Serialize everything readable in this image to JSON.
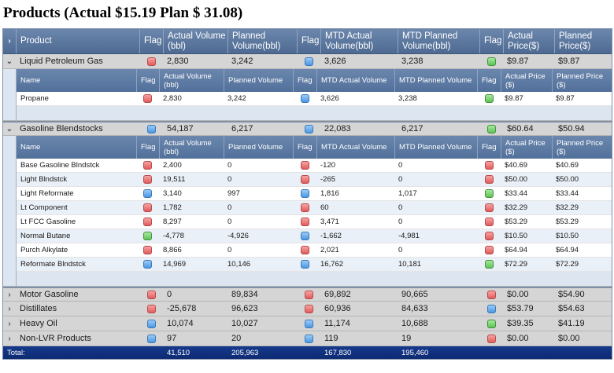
{
  "title": "Products (Actual $15.19 Plan $ 31.08)",
  "columns": {
    "product": "Product",
    "flag": "Flag",
    "actual_volume": "Actual Volume (bbl)",
    "planned_volume": "Planned Volume(bbl)",
    "mtd_actual": "MTD Actual Volume(bbl)",
    "mtd_planned": "MTD Planned Volume(bbl)",
    "actual_price": "Actual Price($)",
    "planned_price": "Planned Price($)"
  },
  "sub_columns": {
    "name": "Name",
    "flag": "Flag",
    "actual_volume": "Actual Volume (bbl)",
    "planned_volume": "Planned Volume",
    "mtd_actual": "MTD Actual Volume",
    "mtd_planned": "MTD Planned Volume",
    "actual_price": "Actual Price ($)",
    "planned_price": "Planned Price ($)"
  },
  "icons": {
    "collapsed": "chevron-right-icon",
    "expanded": "chevron-down-icon"
  },
  "groups": [
    {
      "name": "Liquid Petroleum Gas",
      "expanded": true,
      "flag1": "red",
      "actual_volume": "2,830",
      "planned_volume": "3,242",
      "flag2": "blue",
      "mtd_actual": "3,626",
      "mtd_planned": "3,238",
      "flag3": "green",
      "actual_price": "$9.87",
      "planned_price": "$9.87",
      "items": [
        {
          "name": "Propane",
          "flag1": "red",
          "actual_volume": "2,830",
          "planned_volume": "3,242",
          "flag2": "blue",
          "mtd_actual": "3,626",
          "mtd_planned": "3,238",
          "flag3": "green",
          "actual_price": "$9.87",
          "planned_price": "$9.87"
        }
      ]
    },
    {
      "name": "Gasoline Blendstocks",
      "expanded": true,
      "flag1": "blue",
      "actual_volume": "54,187",
      "planned_volume": "6,217",
      "flag2": "blue",
      "mtd_actual": "22,083",
      "mtd_planned": "6,217",
      "flag3": "green",
      "actual_price": "$60.64",
      "planned_price": "$50.94",
      "items": [
        {
          "name": "Base Gasoline Blndstck",
          "flag1": "red",
          "actual_volume": "2,400",
          "planned_volume": "0",
          "flag2": "red",
          "mtd_actual": "-120",
          "mtd_planned": "0",
          "flag3": "red",
          "actual_price": "$40.69",
          "planned_price": "$40.69"
        },
        {
          "name": "Light Blndstck",
          "flag1": "red",
          "actual_volume": "19,511",
          "planned_volume": "0",
          "flag2": "red",
          "mtd_actual": "-265",
          "mtd_planned": "0",
          "flag3": "red",
          "actual_price": "$50.00",
          "planned_price": "$50.00"
        },
        {
          "name": "Light Reformate",
          "flag1": "blue",
          "actual_volume": "3,140",
          "planned_volume": "997",
          "flag2": "blue",
          "mtd_actual": "1,816",
          "mtd_planned": "1,017",
          "flag3": "green",
          "actual_price": "$33.44",
          "planned_price": "$33.44"
        },
        {
          "name": "Lt Component",
          "flag1": "red",
          "actual_volume": "1,782",
          "planned_volume": "0",
          "flag2": "red",
          "mtd_actual": "60",
          "mtd_planned": "0",
          "flag3": "red",
          "actual_price": "$32.29",
          "planned_price": "$32.29"
        },
        {
          "name": "Lt FCC Gasoline",
          "flag1": "red",
          "actual_volume": "8,297",
          "planned_volume": "0",
          "flag2": "red",
          "mtd_actual": "3,471",
          "mtd_planned": "0",
          "flag3": "red",
          "actual_price": "$53.29",
          "planned_price": "$53.29"
        },
        {
          "name": "Normal Butane",
          "flag1": "green",
          "actual_volume": "-4,778",
          "planned_volume": "-4,926",
          "flag2": "blue",
          "mtd_actual": "-1,662",
          "mtd_planned": "-4,981",
          "flag3": "red",
          "actual_price": "$10.50",
          "planned_price": "$10.50"
        },
        {
          "name": "Purch Alkylate",
          "flag1": "red",
          "actual_volume": "8,866",
          "planned_volume": "0",
          "flag2": "red",
          "mtd_actual": "2,021",
          "mtd_planned": "0",
          "flag3": "red",
          "actual_price": "$64.94",
          "planned_price": "$64.94"
        },
        {
          "name": "Reformate Blndstck",
          "flag1": "blue",
          "actual_volume": "14,969",
          "planned_volume": "10,146",
          "flag2": "blue",
          "mtd_actual": "16,762",
          "mtd_planned": "10,181",
          "flag3": "green",
          "actual_price": "$72.29",
          "planned_price": "$72.29"
        }
      ]
    },
    {
      "name": "Motor Gasoline",
      "expanded": false,
      "flag1": "red",
      "actual_volume": "0",
      "planned_volume": "89,834",
      "flag2": "red",
      "mtd_actual": "69,892",
      "mtd_planned": "90,665",
      "flag3": "red",
      "actual_price": "$0.00",
      "planned_price": "$54.90"
    },
    {
      "name": "Distillates",
      "expanded": false,
      "flag1": "red",
      "actual_volume": "-25,678",
      "planned_volume": "96,623",
      "flag2": "red",
      "mtd_actual": "60,936",
      "mtd_planned": "84,633",
      "flag3": "blue",
      "actual_price": "$53.79",
      "planned_price": "$54.63"
    },
    {
      "name": "Heavy Oil",
      "expanded": false,
      "flag1": "blue",
      "actual_volume": "10,074",
      "planned_volume": "10,027",
      "flag2": "blue",
      "mtd_actual": "11,174",
      "mtd_planned": "10,688",
      "flag3": "green",
      "actual_price": "$39.35",
      "planned_price": "$41.19"
    },
    {
      "name": "Non-LVR Products",
      "expanded": false,
      "flag1": "blue",
      "actual_volume": "97",
      "planned_volume": "20",
      "flag2": "blue",
      "mtd_actual": "119",
      "mtd_planned": "19",
      "flag3": "red",
      "actual_price": "$0.00",
      "planned_price": "$0.00"
    }
  ],
  "total": {
    "label": "Total:",
    "actual_volume": "41,510",
    "planned_volume": "205,963",
    "mtd_actual": "167,830",
    "mtd_planned": "195,460"
  }
}
